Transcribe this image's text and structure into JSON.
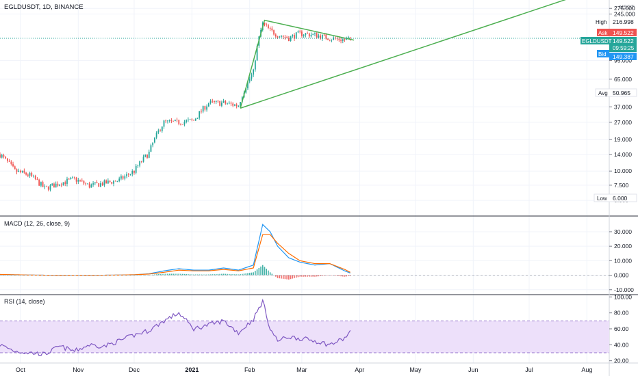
{
  "header": {
    "symbol_title": "EGLDUSDT, 1D, BINANCE",
    "currency": "USDT"
  },
  "price_pane": {
    "y_ticks": [
      "275.000",
      "245.000",
      "95.000",
      "65.000",
      "37.000",
      "27.000",
      "19.000",
      "14.000",
      "10.000",
      "7.500",
      "5.500"
    ],
    "tags": {
      "high": {
        "label": "High",
        "value": "216.998"
      },
      "ask": {
        "label": "Ask",
        "value": "149.522"
      },
      "last": {
        "label": "EGLDUSDT",
        "value": "149.522",
        "countdown": "09:59:25"
      },
      "bid": {
        "label": "Bid",
        "value": "149.387"
      },
      "avg": {
        "label": "Avg",
        "value": "50.965"
      },
      "low": {
        "label": "Low",
        "value": "6.000"
      }
    }
  },
  "macd_pane": {
    "title": "MACD (12, 26, close, 9)",
    "y_ticks": [
      "30.000",
      "20.000",
      "10.000",
      "0.000",
      "-10.000"
    ]
  },
  "rsi_pane": {
    "title": "RSI (14, close)",
    "y_ticks": [
      "100.00",
      "80.00",
      "60.00",
      "40.00",
      "20.00"
    ]
  },
  "x_axis": {
    "labels": [
      "Oct",
      "Nov",
      "Dec",
      "2021",
      "Feb",
      "Mar",
      "Apr",
      "May",
      "Jun",
      "Jul",
      "Aug"
    ]
  },
  "colors": {
    "up": "#26a69a",
    "down": "#ef5350",
    "trendline": "#4caf50",
    "macd_line": "#2196f3",
    "signal_line": "#ff6d00",
    "rsi_line": "#7e57c2",
    "rsi_band": "#ede0fa",
    "ask_tag": "#ef5350",
    "last_tag": "#26a69a",
    "bid_tag": "#2196f3"
  },
  "chart_data": {
    "type": "candlestick",
    "x": [
      "2020-09-20",
      "2020-09-28",
      "2020-10-06",
      "2020-10-14",
      "2020-10-22",
      "2020-10-30",
      "2020-11-07",
      "2020-11-15",
      "2020-11-23",
      "2020-12-01",
      "2020-12-09",
      "2020-12-17",
      "2020-12-25",
      "2021-01-02",
      "2021-01-10",
      "2021-01-18",
      "2021-01-26",
      "2021-02-03",
      "2021-02-08",
      "2021-02-12",
      "2021-02-16",
      "2021-02-22",
      "2021-02-28",
      "2021-03-08",
      "2021-03-16",
      "2021-03-24",
      "2021-03-27"
    ],
    "series": [
      {
        "values": [
          14.0,
          10.0,
          9.2,
          7.0,
          7.8,
          8.5,
          7.4,
          7.8,
          8.3,
          10.0,
          14.5,
          27.0,
          27.0,
          28.0,
          40.0,
          40.0,
          38.0,
          75.0,
          200.0,
          175.0,
          160.0,
          150.0,
          165.0,
          160.0,
          150.0,
          145.0,
          149.5
        ]
      },
      {
        "values": [
          0.5,
          0.3,
          0.1,
          0.0,
          -0.1,
          0.0,
          -0.1,
          0.0,
          0.1,
          0.3,
          1.0,
          3.0,
          4.5,
          3.5,
          3.5,
          5.0,
          3.5,
          7.0,
          35.0,
          30.0,
          20.0,
          12.0,
          9.0,
          7.0,
          8.0,
          3.0,
          1.5
        ]
      },
      {
        "values": [
          0.5,
          0.3,
          0.1,
          0.0,
          -0.1,
          0.0,
          -0.1,
          0.0,
          0.1,
          0.3,
          0.8,
          2.0,
          3.5,
          3.0,
          3.0,
          4.0,
          3.0,
          5.0,
          28.0,
          28.0,
          22.0,
          15.0,
          10.0,
          8.0,
          8.0,
          4.0,
          2.0
        ]
      },
      {
        "values": [
          40,
          32,
          30,
          28,
          38,
          32,
          40,
          38,
          45,
          52,
          58,
          70,
          80,
          60,
          65,
          70,
          55,
          72,
          95,
          60,
          45,
          50,
          48,
          45,
          40,
          48,
          57
        ]
      }
    ],
    "annotations": {
      "trendline_upper": [
        [
          "2021-01-27",
          36.0
        ],
        [
          "2021-02-09",
          216.0
        ],
        [
          "2021-03-29",
          144.0
        ]
      ],
      "trendline_lower": [
        [
          "2021-01-27",
          36.0
        ],
        [
          "2021-08-01",
          380.0
        ]
      ]
    },
    "ylim": [
      5.0,
      300.0
    ],
    "log_scale": true,
    "macd_ylim": [
      -12.0,
      38.0
    ],
    "rsi_ylim": [
      18.0,
      102.0
    ],
    "rsi_band": [
      30,
      70
    ],
    "grid": true,
    "legend_position": "top-left"
  }
}
